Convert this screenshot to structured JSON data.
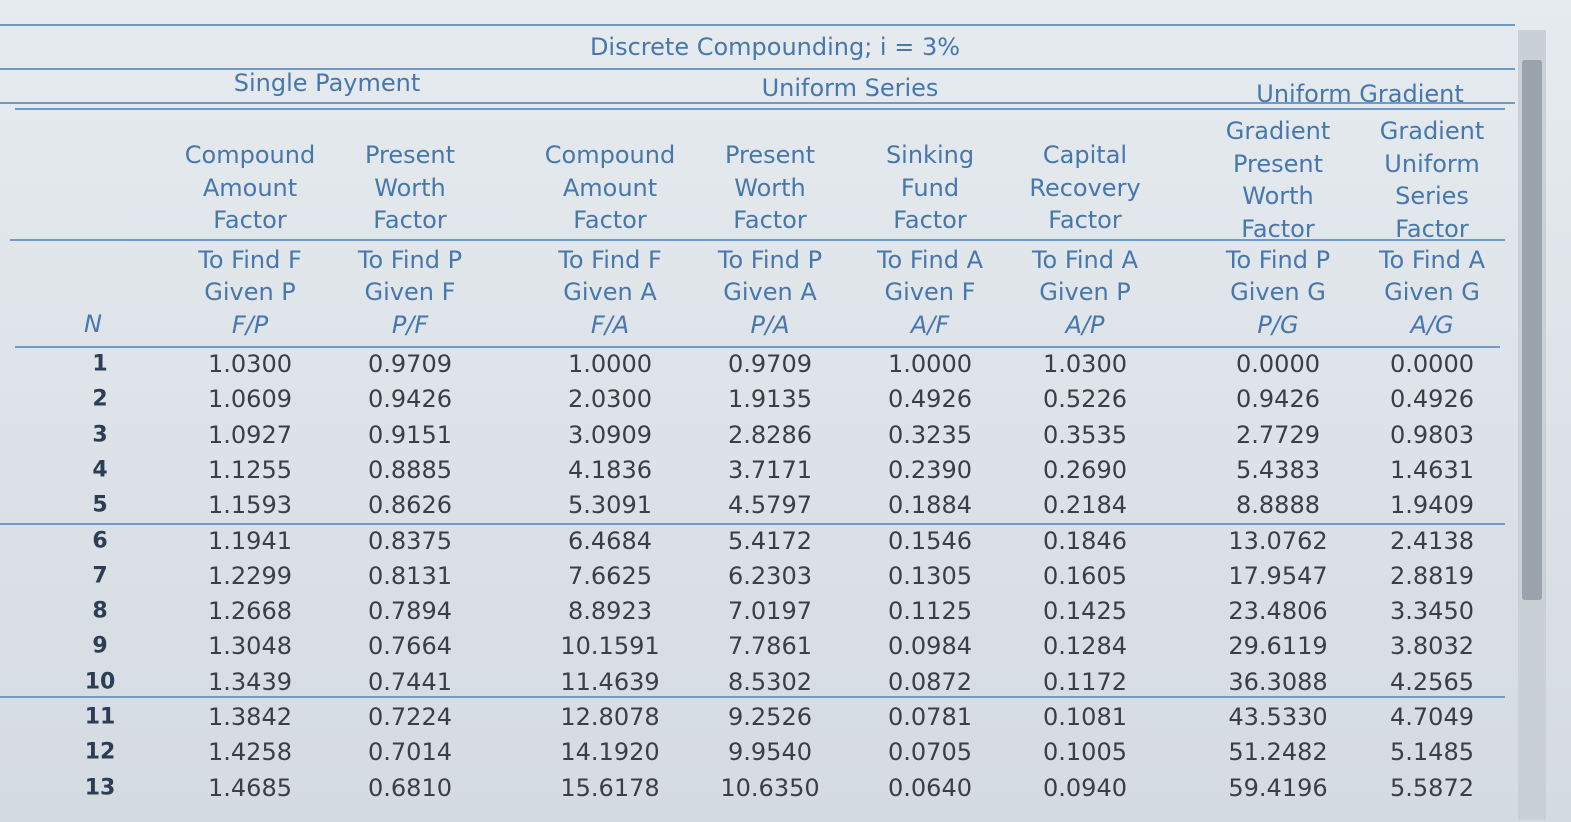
{
  "header": {
    "title": "Discrete Compounding; i = 3%"
  },
  "table": {
    "groups": [
      "Single Payment",
      "Uniform Series",
      "Uniform Gradient"
    ],
    "n_label": "N",
    "columns": [
      {
        "name": [
          "Compound",
          "Amount",
          "Factor"
        ],
        "find": "To Find F",
        "given": "Given P",
        "symbol": "F/P"
      },
      {
        "name": [
          "Present",
          "Worth",
          "Factor"
        ],
        "find": "To Find P",
        "given": "Given F",
        "symbol": "P/F"
      },
      {
        "name": [
          "Compound",
          "Amount",
          "Factor"
        ],
        "find": "To Find F",
        "given": "Given A",
        "symbol": "F/A"
      },
      {
        "name": [
          "Present",
          "Worth",
          "Factor"
        ],
        "find": "To Find P",
        "given": "Given A",
        "symbol": "P/A"
      },
      {
        "name": [
          "Sinking",
          "Fund",
          "Factor"
        ],
        "find": "To Find A",
        "given": "Given F",
        "symbol": "A/F"
      },
      {
        "name": [
          "Capital",
          "Recovery",
          "Factor"
        ],
        "find": "To Find A",
        "given": "Given P",
        "symbol": "A/P"
      },
      {
        "name": [
          "Gradient",
          "Present",
          "Worth",
          "Factor"
        ],
        "find": "To Find P",
        "given": "Given G",
        "symbol": "P/G"
      },
      {
        "name": [
          "Gradient",
          "Uniform",
          "Series",
          "Factor"
        ],
        "find": "To Find A",
        "given": "Given G",
        "symbol": "A/G"
      }
    ],
    "rows": [
      [
        "1",
        "1.0300",
        "0.9709",
        "1.0000",
        "0.9709",
        "1.0000",
        "1.0300",
        "0.0000",
        "0.0000"
      ],
      [
        "2",
        "1.0609",
        "0.9426",
        "2.0300",
        "1.9135",
        "0.4926",
        "0.5226",
        "0.9426",
        "0.4926"
      ],
      [
        "3",
        "1.0927",
        "0.9151",
        "3.0909",
        "2.8286",
        "0.3235",
        "0.3535",
        "2.7729",
        "0.9803"
      ],
      [
        "4",
        "1.1255",
        "0.8885",
        "4.1836",
        "3.7171",
        "0.2390",
        "0.2690",
        "5.4383",
        "1.4631"
      ],
      [
        "5",
        "1.1593",
        "0.8626",
        "5.3091",
        "4.5797",
        "0.1884",
        "0.2184",
        "8.8888",
        "1.9409"
      ],
      [
        "6",
        "1.1941",
        "0.8375",
        "6.4684",
        "5.4172",
        "0.1546",
        "0.1846",
        "13.0762",
        "2.4138"
      ],
      [
        "7",
        "1.2299",
        "0.8131",
        "7.6625",
        "6.2303",
        "0.1305",
        "0.1605",
        "17.9547",
        "2.8819"
      ],
      [
        "8",
        "1.2668",
        "0.7894",
        "8.8923",
        "7.0197",
        "0.1125",
        "0.1425",
        "23.4806",
        "3.3450"
      ],
      [
        "9",
        "1.3048",
        "0.7664",
        "10.1591",
        "7.7861",
        "0.0984",
        "0.1284",
        "29.6119",
        "3.8032"
      ],
      [
        "10",
        "1.3439",
        "0.7441",
        "11.4639",
        "8.5302",
        "0.0872",
        "0.1172",
        "36.3088",
        "4.2565"
      ],
      [
        "11",
        "1.3842",
        "0.7224",
        "12.8078",
        "9.2526",
        "0.0781",
        "0.1081",
        "43.5330",
        "4.7049"
      ],
      [
        "12",
        "1.4258",
        "0.7014",
        "14.1920",
        "9.9540",
        "0.0705",
        "0.1005",
        "51.2482",
        "5.1485"
      ],
      [
        "13",
        "1.4685",
        "0.6810",
        "15.6178",
        "10.6350",
        "0.0640",
        "0.0940",
        "59.4196",
        "5.5872"
      ]
    ]
  }
}
